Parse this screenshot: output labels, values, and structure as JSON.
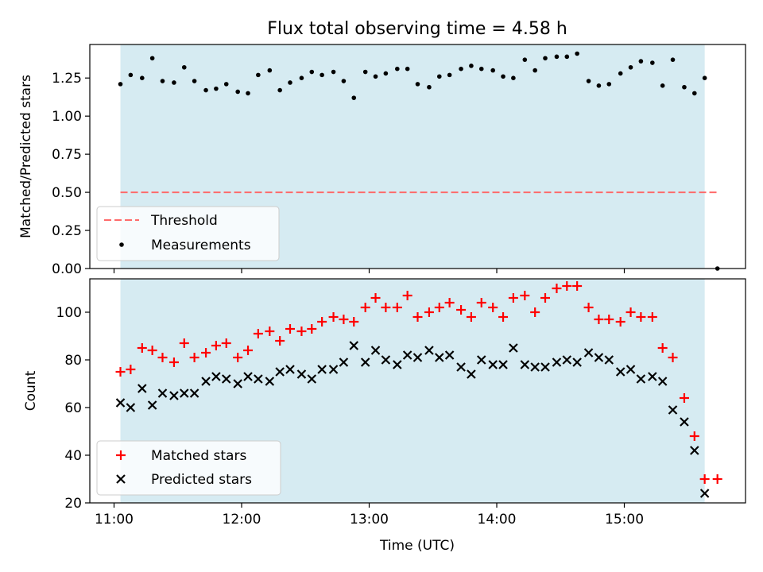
{
  "chart_data": {
    "type": "scatter",
    "title": "Flux total observing time = 4.58 h",
    "xlabel": "Time (UTC)",
    "x_unit": "hours UTC",
    "xlim": [
      10.81,
      15.95
    ],
    "x_ticks": [
      {
        "value": 11,
        "label": "11:00"
      },
      {
        "value": 12,
        "label": "12:00"
      },
      {
        "value": 13,
        "label": "13:00"
      },
      {
        "value": 14,
        "label": "14:00"
      },
      {
        "value": 15,
        "label": "15:00"
      }
    ],
    "observing_span": [
      11.05,
      15.63
    ],
    "colors": {
      "span": "#add8e6",
      "threshold": "#ff6b6b",
      "measurements": "#000000",
      "matched": "#ff0000",
      "predicted": "#000000"
    },
    "panels": [
      {
        "id": "ratio",
        "ylabel": "Matched/Predicted stars",
        "ylim": [
          0.0,
          1.47
        ],
        "y_ticks": [
          {
            "value": 0.0,
            "label": "0.00"
          },
          {
            "value": 0.25,
            "label": "0.25"
          },
          {
            "value": 0.5,
            "label": "0.50"
          },
          {
            "value": 0.75,
            "label": "0.75"
          },
          {
            "value": 1.0,
            "label": "1.00"
          },
          {
            "value": 1.25,
            "label": "1.25"
          }
        ],
        "threshold": {
          "name": "Threshold",
          "value": 0.5,
          "x_range": [
            11.05,
            15.73
          ]
        },
        "series": [
          {
            "name": "Measurements",
            "marker": "dot",
            "x": [
              11.05,
              11.13,
              11.22,
              11.3,
              11.38,
              11.47,
              11.55,
              11.63,
              11.72,
              11.8,
              11.88,
              11.97,
              12.05,
              12.13,
              12.22,
              12.3,
              12.38,
              12.47,
              12.55,
              12.63,
              12.72,
              12.8,
              12.88,
              12.97,
              13.05,
              13.13,
              13.22,
              13.3,
              13.38,
              13.47,
              13.55,
              13.63,
              13.72,
              13.8,
              13.88,
              13.97,
              14.05,
              14.13,
              14.22,
              14.3,
              14.38,
              14.47,
              14.55,
              14.63,
              14.72,
              14.8,
              14.88,
              14.97,
              15.05,
              15.13,
              15.22,
              15.3,
              15.38,
              15.47,
              15.55,
              15.63,
              15.73
            ],
            "y": [
              1.21,
              1.27,
              1.25,
              1.38,
              1.23,
              1.22,
              1.32,
              1.23,
              1.17,
              1.18,
              1.21,
              1.16,
              1.15,
              1.27,
              1.3,
              1.17,
              1.22,
              1.25,
              1.29,
              1.27,
              1.29,
              1.23,
              1.12,
              1.29,
              1.26,
              1.28,
              1.31,
              1.31,
              1.21,
              1.19,
              1.26,
              1.27,
              1.31,
              1.33,
              1.31,
              1.3,
              1.26,
              1.25,
              1.37,
              1.3,
              1.38,
              1.39,
              1.39,
              1.41,
              1.23,
              1.2,
              1.21,
              1.28,
              1.32,
              1.36,
              1.35,
              1.2,
              1.37,
              1.19,
              1.15,
              1.25,
              0.0
            ]
          }
        ],
        "legend": {
          "position": "lower-left",
          "entries": [
            "Threshold",
            "Measurements"
          ]
        }
      },
      {
        "id": "counts",
        "ylabel": "Count",
        "ylim": [
          20,
          114
        ],
        "y_ticks": [
          {
            "value": 20,
            "label": "20"
          },
          {
            "value": 40,
            "label": "40"
          },
          {
            "value": 60,
            "label": "60"
          },
          {
            "value": 80,
            "label": "80"
          },
          {
            "value": 100,
            "label": "100"
          }
        ],
        "series": [
          {
            "name": "Matched stars",
            "marker": "plus",
            "x": [
              11.05,
              11.13,
              11.22,
              11.3,
              11.38,
              11.47,
              11.55,
              11.63,
              11.72,
              11.8,
              11.88,
              11.97,
              12.05,
              12.13,
              12.22,
              12.3,
              12.38,
              12.47,
              12.55,
              12.63,
              12.72,
              12.8,
              12.88,
              12.97,
              13.05,
              13.13,
              13.22,
              13.3,
              13.38,
              13.47,
              13.55,
              13.63,
              13.72,
              13.8,
              13.88,
              13.97,
              14.05,
              14.13,
              14.22,
              14.3,
              14.38,
              14.47,
              14.55,
              14.63,
              14.72,
              14.8,
              14.88,
              14.97,
              15.05,
              15.13,
              15.22,
              15.3,
              15.38,
              15.47,
              15.55,
              15.63,
              15.73
            ],
            "y": [
              75,
              76,
              85,
              84,
              81,
              79,
              87,
              81,
              83,
              86,
              87,
              81,
              84,
              91,
              92,
              88,
              93,
              92,
              93,
              96,
              98,
              97,
              96,
              102,
              106,
              102,
              102,
              107,
              98,
              100,
              102,
              104,
              101,
              98,
              104,
              102,
              98,
              106,
              107,
              100,
              106,
              110,
              111,
              111,
              102,
              97,
              97,
              96,
              100,
              98,
              98,
              85,
              81,
              64,
              48,
              30,
              30
            ]
          },
          {
            "name": "Predicted stars",
            "marker": "x",
            "x": [
              11.05,
              11.13,
              11.22,
              11.3,
              11.38,
              11.47,
              11.55,
              11.63,
              11.72,
              11.8,
              11.88,
              11.97,
              12.05,
              12.13,
              12.22,
              12.3,
              12.38,
              12.47,
              12.55,
              12.63,
              12.72,
              12.8,
              12.88,
              12.97,
              13.05,
              13.13,
              13.22,
              13.3,
              13.38,
              13.47,
              13.55,
              13.63,
              13.72,
              13.8,
              13.88,
              13.97,
              14.05,
              14.13,
              14.22,
              14.3,
              14.38,
              14.47,
              14.55,
              14.63,
              14.72,
              14.8,
              14.88,
              14.97,
              15.05,
              15.13,
              15.22,
              15.3,
              15.38,
              15.47,
              15.55,
              15.63
            ],
            "y": [
              62,
              60,
              68,
              61,
              66,
              65,
              66,
              66,
              71,
              73,
              72,
              70,
              73,
              72,
              71,
              75,
              76,
              74,
              72,
              76,
              76,
              79,
              86,
              79,
              84,
              80,
              78,
              82,
              81,
              84,
              81,
              82,
              77,
              74,
              80,
              78,
              78,
              85,
              78,
              77,
              77,
              79,
              80,
              79,
              83,
              81,
              80,
              75,
              76,
              72,
              73,
              71,
              59,
              54,
              42,
              24
            ]
          }
        ],
        "legend": {
          "position": "lower-left",
          "entries": [
            "Matched stars",
            "Predicted stars"
          ]
        }
      }
    ]
  }
}
